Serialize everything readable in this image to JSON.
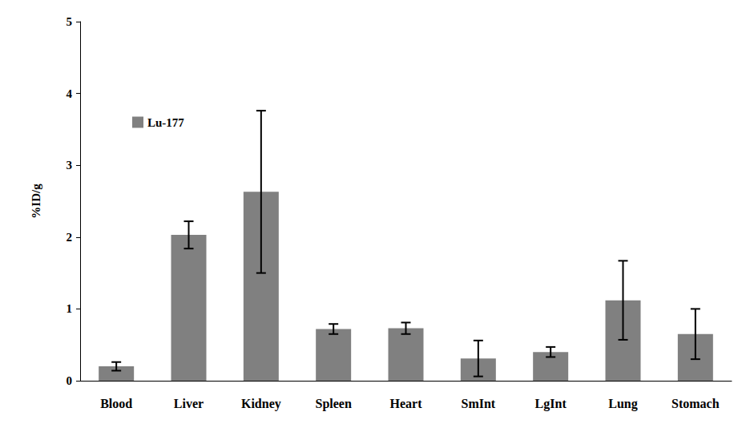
{
  "chart_data": {
    "type": "bar",
    "y_label": "%ID/g",
    "categories": [
      "Blood",
      "Liver",
      "Kidney",
      "Spleen",
      "Heart",
      "SmInt",
      "LgInt",
      "Lung",
      "Stomach"
    ],
    "series": [
      {
        "name": "Lu-177",
        "color": "#808080",
        "values": [
          0.2,
          2.03,
          2.63,
          0.72,
          0.73,
          0.31,
          0.4,
          1.12,
          0.65
        ],
        "errors": [
          0.06,
          0.19,
          1.13,
          0.07,
          0.08,
          0.25,
          0.07,
          0.55,
          0.35
        ]
      }
    ],
    "ylim": [
      0,
      5
    ],
    "yticks": [
      0,
      1,
      2,
      3,
      4,
      5
    ],
    "grid": false,
    "legend": "upper left"
  }
}
